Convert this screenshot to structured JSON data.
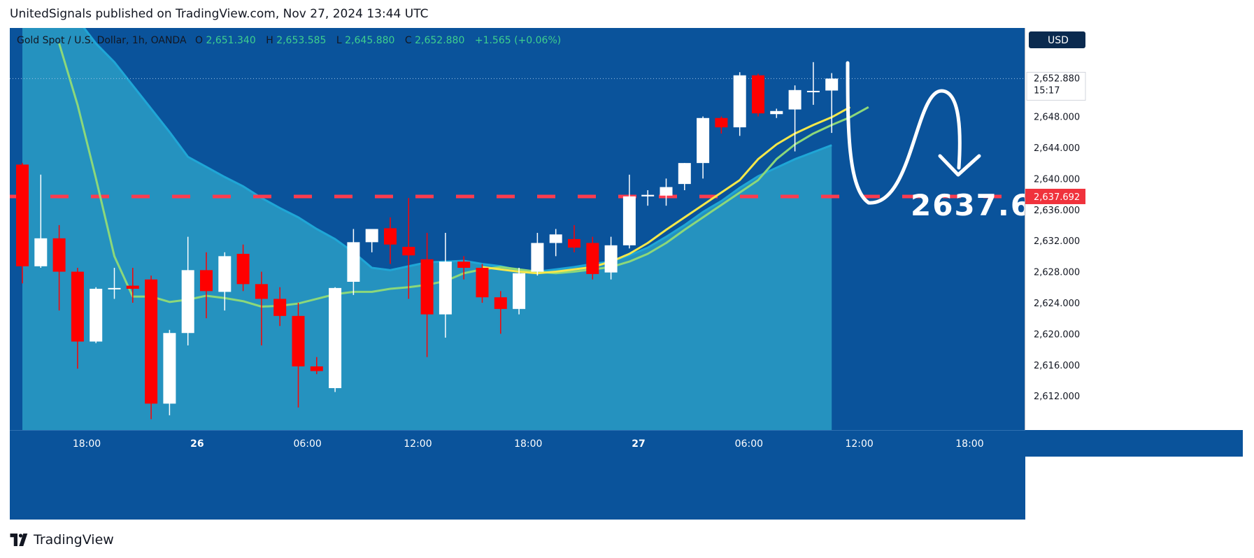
{
  "header": {
    "publisher_line": "UnitedSignals published on TradingView.com, Nov 27, 2024 13:44 UTC"
  },
  "footer": {
    "brand": "TradingView",
    "logo_icon": "tradingview-logo-icon"
  },
  "legend": {
    "symbol": "Gold Spot / U.S. Dollar, 1h, OANDA",
    "o_label": "O",
    "o_value": "2,651.340",
    "h_label": "H",
    "h_value": "2,653.585",
    "l_label": "L",
    "l_value": "2,645.880",
    "c_label": "C",
    "c_value": "2,652.880",
    "change": "+1.565 (+0.06%)"
  },
  "price_axis": {
    "currency": "USD",
    "ticks": [
      "2,612.000",
      "2,616.000",
      "2,620.000",
      "2,624.000",
      "2,628.000",
      "2,632.000",
      "2,636.000",
      "2,640.000",
      "2,644.000",
      "2,648.000"
    ],
    "last_price": "2,652.880",
    "countdown": "15:17",
    "level_label": "2,637.692"
  },
  "time_axis": {
    "labels": [
      "18:00",
      "26",
      "06:00",
      "12:00",
      "18:00",
      "27",
      "06:00",
      "12:00",
      "18:00"
    ]
  },
  "annotation": {
    "target_text": "2637.6"
  },
  "colors": {
    "background": "#0a539b",
    "up_candle": "#ffffff",
    "down_candle": "#ff0000",
    "ma_fast": "#f5e84a",
    "ma_slow": "#8cd87a",
    "cloud": "#2a9ec5",
    "level_line": "#ff3b4e",
    "legend_values": "#3ecf8e"
  },
  "chart_data": {
    "type": "candlestick",
    "symbol": "Gold Spot / U.S. Dollar",
    "interval": "1h",
    "ylim": [
      2608.5,
      2658.5
    ],
    "level": 2637.692,
    "target": 2637.6,
    "time_ticks": [
      {
        "bar": 3.5,
        "label": "18:00"
      },
      {
        "bar": 9.5,
        "label": "26"
      },
      {
        "bar": 15.5,
        "label": "06:00"
      },
      {
        "bar": 21.5,
        "label": "12:00"
      },
      {
        "bar": 27.5,
        "label": "18:00"
      },
      {
        "bar": 33.5,
        "label": "27"
      },
      {
        "bar": 39.5,
        "label": "06:00"
      },
      {
        "bar": 45.5,
        "label": "12:00"
      },
      {
        "bar": 51.5,
        "label": "18:00"
      }
    ],
    "candles": [
      {
        "o": 2641.8,
        "h": 2642.0,
        "l": 2626.5,
        "c": 2628.7
      },
      {
        "o": 2628.7,
        "h": 2640.5,
        "l": 2628.5,
        "c": 2632.3
      },
      {
        "o": 2632.3,
        "h": 2634.0,
        "l": 2623.0,
        "c": 2628.0
      },
      {
        "o": 2628.0,
        "h": 2628.5,
        "l": 2615.5,
        "c": 2619.0
      },
      {
        "o": 2619.0,
        "h": 2626.0,
        "l": 2618.8,
        "c": 2625.8
      },
      {
        "o": 2625.8,
        "h": 2628.5,
        "l": 2624.5,
        "c": 2625.9
      },
      {
        "o": 2626.2,
        "h": 2628.5,
        "l": 2624.0,
        "c": 2625.8
      },
      {
        "o": 2627.0,
        "h": 2627.5,
        "l": 2609.0,
        "c": 2611.0
      },
      {
        "o": 2611.0,
        "h": 2620.5,
        "l": 2609.5,
        "c": 2620.1
      },
      {
        "o": 2620.1,
        "h": 2632.5,
        "l": 2618.5,
        "c": 2628.2
      },
      {
        "o": 2628.2,
        "h": 2630.5,
        "l": 2622.0,
        "c": 2625.5
      },
      {
        "o": 2625.4,
        "h": 2630.5,
        "l": 2623.0,
        "c": 2630.0
      },
      {
        "o": 2630.3,
        "h": 2631.5,
        "l": 2625.5,
        "c": 2626.4
      },
      {
        "o": 2626.4,
        "h": 2628.0,
        "l": 2618.5,
        "c": 2624.5
      },
      {
        "o": 2624.5,
        "h": 2626.0,
        "l": 2621.0,
        "c": 2622.3
      },
      {
        "o": 2622.3,
        "h": 2624.0,
        "l": 2610.5,
        "c": 2615.8
      },
      {
        "o": 2615.8,
        "h": 2617.0,
        "l": 2614.8,
        "c": 2615.2
      },
      {
        "o": 2613.0,
        "h": 2626.0,
        "l": 2612.5,
        "c": 2625.9
      },
      {
        "o": 2626.7,
        "h": 2633.5,
        "l": 2625.0,
        "c": 2631.8
      },
      {
        "o": 2631.8,
        "h": 2633.5,
        "l": 2630.5,
        "c": 2633.5
      },
      {
        "o": 2633.6,
        "h": 2635.0,
        "l": 2629.0,
        "c": 2631.5
      },
      {
        "o": 2631.2,
        "h": 2637.5,
        "l": 2624.5,
        "c": 2630.1
      },
      {
        "o": 2629.6,
        "h": 2633.0,
        "l": 2617.0,
        "c": 2622.5
      },
      {
        "o": 2622.5,
        "h": 2633.0,
        "l": 2619.5,
        "c": 2629.3
      },
      {
        "o": 2629.3,
        "h": 2630.0,
        "l": 2627.0,
        "c": 2628.5
      },
      {
        "o": 2628.5,
        "h": 2629.0,
        "l": 2624.0,
        "c": 2624.7
      },
      {
        "o": 2624.7,
        "h": 2625.5,
        "l": 2620.0,
        "c": 2623.2
      },
      {
        "o": 2623.2,
        "h": 2628.5,
        "l": 2622.5,
        "c": 2627.8
      },
      {
        "o": 2628.0,
        "h": 2633.0,
        "l": 2627.5,
        "c": 2631.7
      },
      {
        "o": 2631.7,
        "h": 2633.5,
        "l": 2630.0,
        "c": 2632.8
      },
      {
        "o": 2632.2,
        "h": 2634.0,
        "l": 2630.5,
        "c": 2631.1
      },
      {
        "o": 2631.7,
        "h": 2632.5,
        "l": 2627.0,
        "c": 2627.7
      },
      {
        "o": 2627.9,
        "h": 2632.5,
        "l": 2627.0,
        "c": 2631.4
      },
      {
        "o": 2631.4,
        "h": 2640.5,
        "l": 2631.0,
        "c": 2637.7
      },
      {
        "o": 2637.7,
        "h": 2638.5,
        "l": 2636.5,
        "c": 2637.9
      },
      {
        "o": 2637.8,
        "h": 2640.0,
        "l": 2636.5,
        "c": 2638.9
      },
      {
        "o": 2639.3,
        "h": 2642.0,
        "l": 2638.5,
        "c": 2642.0
      },
      {
        "o": 2642.0,
        "h": 2648.0,
        "l": 2640.0,
        "c": 2647.8
      },
      {
        "o": 2647.8,
        "h": 2648.0,
        "l": 2645.8,
        "c": 2646.6
      },
      {
        "o": 2646.6,
        "h": 2653.7,
        "l": 2645.5,
        "c": 2653.3
      },
      {
        "o": 2653.3,
        "h": 2653.5,
        "l": 2648.0,
        "c": 2648.4
      },
      {
        "o": 2648.3,
        "h": 2649.0,
        "l": 2647.8,
        "c": 2648.7
      },
      {
        "o": 2648.9,
        "h": 2652.0,
        "l": 2643.5,
        "c": 2651.4
      },
      {
        "o": 2651.2,
        "h": 2655.0,
        "l": 2649.5,
        "c": 2651.3
      },
      {
        "o": 2651.34,
        "h": 2653.585,
        "l": 2645.88,
        "c": 2652.88
      }
    ],
    "ma_fast": {
      "name": "",
      "start_bar": 25,
      "values": [
        2628.6,
        2628.3,
        2628.0,
        2627.8,
        2628.0,
        2628.3,
        2628.6,
        2629.3,
        2630.3,
        2631.7,
        2633.4,
        2635.0,
        2636.6,
        2638.2,
        2639.8,
        2642.5,
        2644.4,
        2645.8,
        2646.9,
        2647.9,
        2649.2
      ]
    },
    "ma_slow": {
      "name": "",
      "start_bar": 2,
      "values": [
        2657.4,
        2649.5,
        2640.0,
        2630.0,
        2624.8,
        2624.8,
        2624.1,
        2624.4,
        2624.9,
        2624.6,
        2624.2,
        2623.5,
        2623.6,
        2623.9,
        2624.5,
        2625.1,
        2625.4,
        2625.4,
        2625.8,
        2626.0,
        2626.3,
        2626.8,
        2627.8,
        2628.3,
        2628.6,
        2628.3,
        2628.0,
        2627.8,
        2628.0,
        2628.3,
        2628.6,
        2629.3,
        2630.3,
        2631.7,
        2633.4,
        2635.0,
        2636.6,
        2638.2,
        2639.8,
        2642.5,
        2644.4,
        2645.8,
        2646.9,
        2647.9,
        2649.2
      ]
    },
    "cloud_upper": {
      "start_bar": 0,
      "values": [
        2671.0,
        2668.0,
        2665.0,
        2660.5,
        2657.4,
        2655.0,
        2652.0,
        2649.0,
        2646.0,
        2642.8,
        2641.5,
        2640.2,
        2639.0,
        2637.5,
        2636.2,
        2635.0,
        2633.5,
        2632.2,
        2630.5,
        2628.5,
        2628.2,
        2628.7,
        2629.2,
        2629.3,
        2629.4,
        2629.0,
        2628.7,
        2628.2,
        2628.0,
        2628.3,
        2628.6,
        2629.0,
        2629.3,
        2630.1,
        2631.1,
        2632.5,
        2634.0,
        2635.7,
        2637.1,
        2638.8,
        2640.3,
        2641.4,
        2642.5,
        2643.4,
        2644.3
      ]
    }
  }
}
